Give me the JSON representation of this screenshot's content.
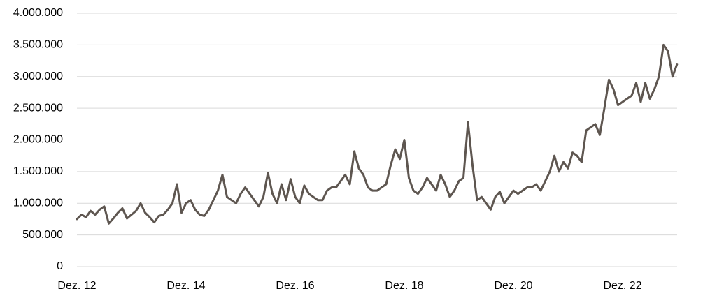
{
  "chart_data": {
    "type": "line",
    "categories": [
      "Dez. 12",
      null,
      null,
      null,
      null,
      null,
      null,
      null,
      null,
      null,
      null,
      null,
      null,
      null,
      null,
      null,
      null,
      null,
      null,
      null,
      null,
      null,
      null,
      null,
      "Dez. 14",
      null,
      null,
      null,
      null,
      null,
      null,
      null,
      null,
      null,
      null,
      null,
      null,
      null,
      null,
      null,
      null,
      null,
      null,
      null,
      null,
      null,
      null,
      null,
      "Dez. 16",
      null,
      null,
      null,
      null,
      null,
      null,
      null,
      null,
      null,
      null,
      null,
      null,
      null,
      null,
      null,
      null,
      null,
      null,
      null,
      null,
      null,
      null,
      null,
      "Dez. 18",
      null,
      null,
      null,
      null,
      null,
      null,
      null,
      null,
      null,
      null,
      null,
      null,
      null,
      null,
      null,
      null,
      null,
      null,
      null,
      null,
      null,
      null,
      null,
      "Dez. 20",
      null,
      null,
      null,
      null,
      null,
      null,
      null,
      null,
      null,
      null,
      null,
      null,
      null,
      null,
      null,
      null,
      null,
      null,
      null,
      null,
      null,
      null,
      null,
      "Dez. 22",
      null,
      null,
      null,
      null,
      null,
      null,
      null,
      null,
      null,
      null,
      null,
      null
    ],
    "values": [
      750000,
      820000,
      780000,
      880000,
      820000,
      900000,
      950000,
      680000,
      760000,
      850000,
      920000,
      760000,
      820000,
      880000,
      1000000,
      850000,
      780000,
      700000,
      800000,
      820000,
      900000,
      1000000,
      1300000,
      850000,
      1000000,
      1050000,
      900000,
      820000,
      800000,
      900000,
      1050000,
      1200000,
      1450000,
      1100000,
      1050000,
      1000000,
      1150000,
      1250000,
      1150000,
      1050000,
      950000,
      1100000,
      1480000,
      1150000,
      1000000,
      1300000,
      1050000,
      1380000,
      1100000,
      1000000,
      1280000,
      1150000,
      1100000,
      1050000,
      1050000,
      1200000,
      1250000,
      1250000,
      1350000,
      1450000,
      1300000,
      1820000,
      1550000,
      1450000,
      1250000,
      1200000,
      1200000,
      1250000,
      1300000,
      1600000,
      1850000,
      1700000,
      2000000,
      1400000,
      1200000,
      1150000,
      1250000,
      1400000,
      1300000,
      1200000,
      1450000,
      1300000,
      1100000,
      1200000,
      1350000,
      1400000,
      2280000,
      1600000,
      1050000,
      1100000,
      1000000,
      900000,
      1100000,
      1180000,
      1000000,
      1100000,
      1200000,
      1150000,
      1200000,
      1250000,
      1250000,
      1300000,
      1200000,
      1350000,
      1500000,
      1750000,
      1500000,
      1650000,
      1550000,
      1800000,
      1750000,
      1650000,
      2150000,
      2200000,
      2250000,
      2080000,
      2500000,
      2950000,
      2800000,
      2550000,
      2600000,
      2650000,
      2700000,
      2900000,
      2600000,
      2900000,
      2650000,
      2800000,
      3000000,
      3500000,
      3400000,
      3000000,
      3200000
    ],
    "color": "#5e5650",
    "ylim": [
      0,
      4000000
    ],
    "yticks": [
      0,
      {
        "value": 500000,
        "label": "500.000"
      },
      {
        "value": 1000000,
        "label": "1.000.000"
      },
      {
        "value": 1500000,
        "label": "1.500.000"
      },
      {
        "value": 2000000,
        "label": "2.000.000"
      },
      {
        "value": 2500000,
        "label": "2.500.000"
      },
      {
        "value": 3000000,
        "label": "3.000.000"
      },
      {
        "value": 3500000,
        "label": "3.500.000"
      },
      {
        "value": 4000000,
        "label": "4.000.000"
      }
    ],
    "grid": true
  }
}
